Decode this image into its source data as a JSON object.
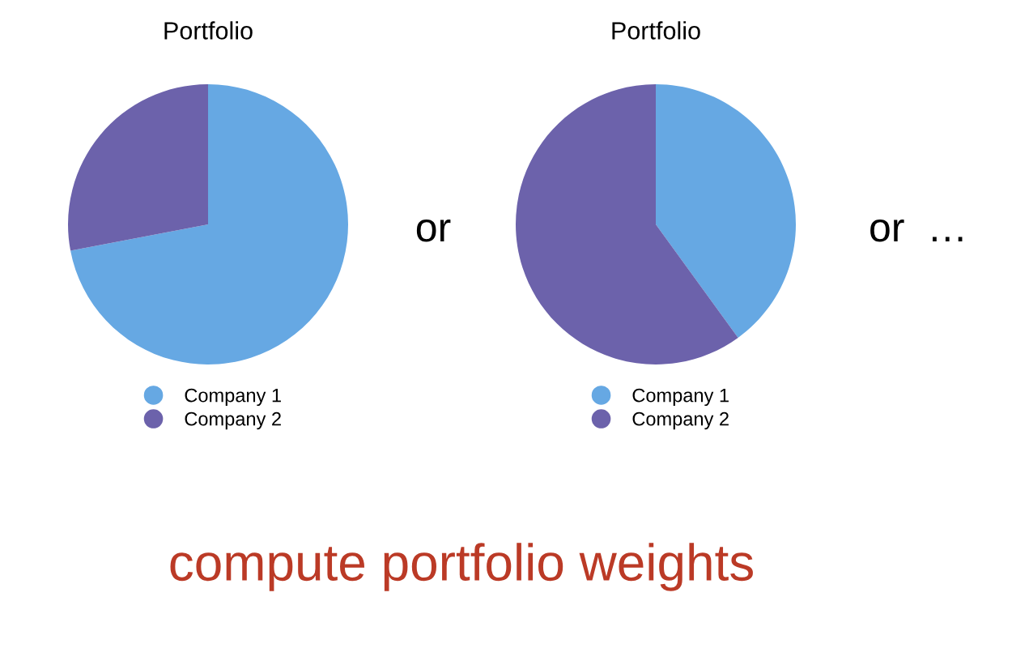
{
  "chart_data": [
    {
      "type": "pie",
      "title": "Portfolio",
      "categories": [
        "Company 1",
        "Company 2"
      ],
      "values": [
        72,
        28
      ],
      "colors": [
        "#66a8e3",
        "#6c62ab"
      ],
      "legend": "bottom",
      "annotations": [
        "or",
        "compute portfolio weights"
      ]
    },
    {
      "type": "pie",
      "title": "Portfolio",
      "categories": [
        "Company 1",
        "Company 2"
      ],
      "values": [
        40,
        60
      ],
      "colors": [
        "#66a8e3",
        "#6c62ab"
      ],
      "legend": "bottom",
      "annotations": [
        "or  …"
      ]
    }
  ]
}
